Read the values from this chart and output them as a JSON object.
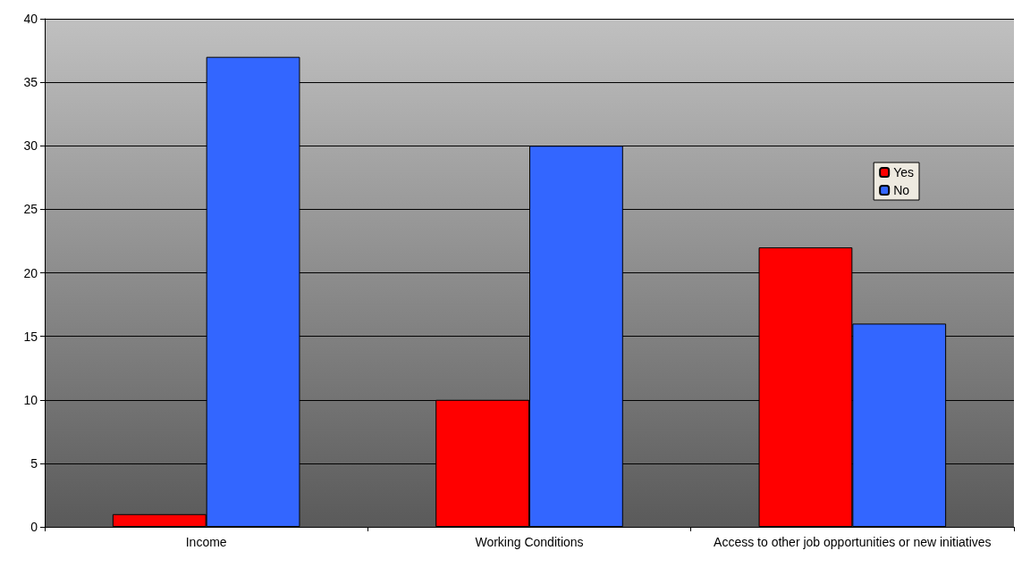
{
  "chart_data": {
    "type": "bar",
    "categories": [
      "Income",
      "Working Conditions",
      "Access to other job opportunities or new initiatives"
    ],
    "series": [
      {
        "name": "Yes",
        "color": "#ff0000",
        "values": [
          1,
          10,
          22
        ]
      },
      {
        "name": "No",
        "color": "#3366ff",
        "values": [
          37,
          30,
          16
        ]
      }
    ],
    "ylim": [
      0,
      40
    ],
    "yticks": [
      0,
      5,
      10,
      15,
      20,
      25,
      30,
      35,
      40
    ],
    "grid": "y",
    "legend": "top right"
  }
}
